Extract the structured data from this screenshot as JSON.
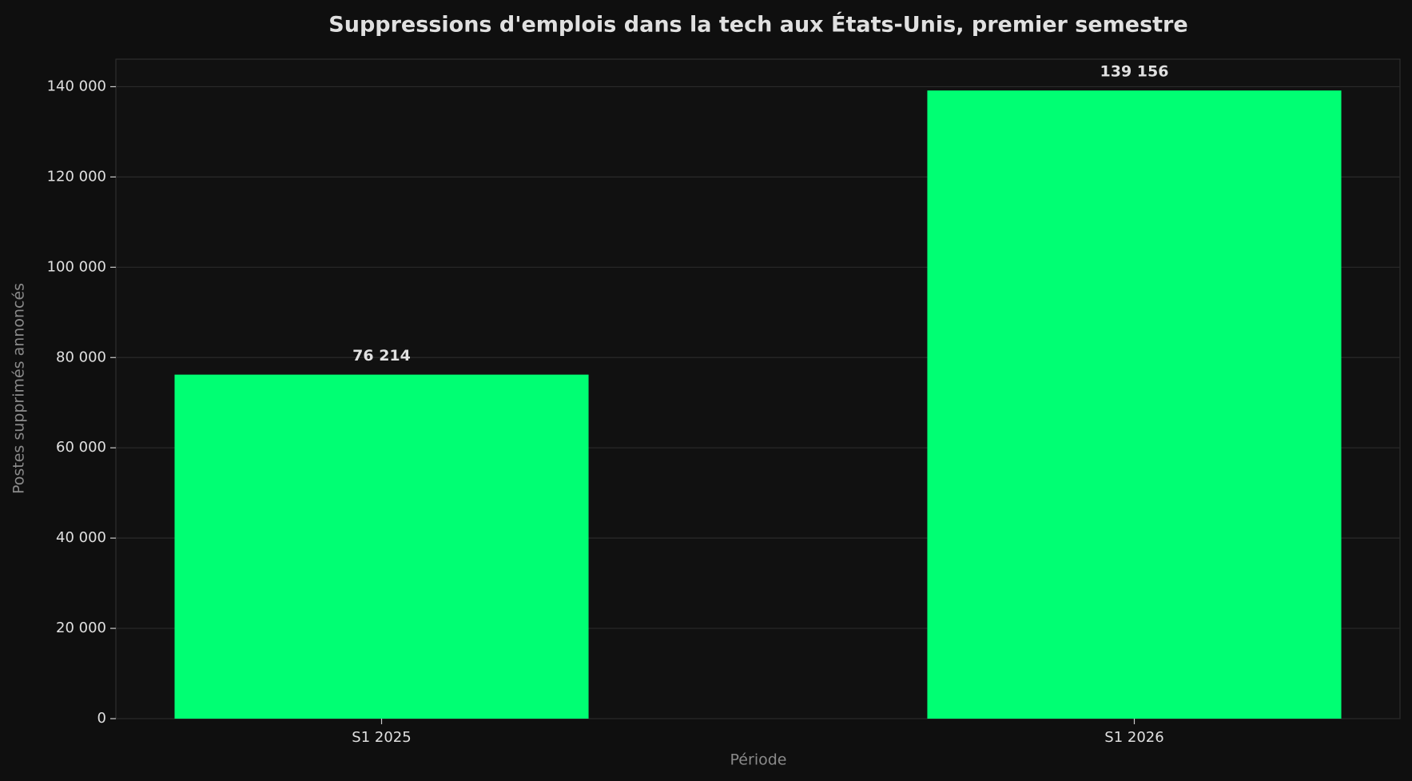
{
  "chart_data": {
    "type": "bar",
    "title": "Suppressions d'emplois dans la tech aux États-Unis, premier semestre",
    "x_label": "Période",
    "y_label": "Postes supprimés annoncés",
    "categories": [
      "S1 2025",
      "S1 2026"
    ],
    "values": [
      76214,
      139156
    ],
    "value_labels": [
      "76 214",
      "139 156"
    ],
    "color": "#00ff73",
    "ylim": [
      0,
      146100
    ],
    "yticks": [
      0,
      {
        "value": 20000,
        "label": "20 000"
      },
      {
        "value": 40000,
        "label": "40 000"
      },
      {
        "value": 60000,
        "label": "60 000"
      },
      {
        "value": 80000,
        "label": "80 000"
      },
      {
        "value": 100000,
        "label": "100 000"
      },
      {
        "value": 120000,
        "label": "120 000"
      },
      {
        "value": 140000,
        "label": "140 000"
      }
    ],
    "grid": true
  }
}
